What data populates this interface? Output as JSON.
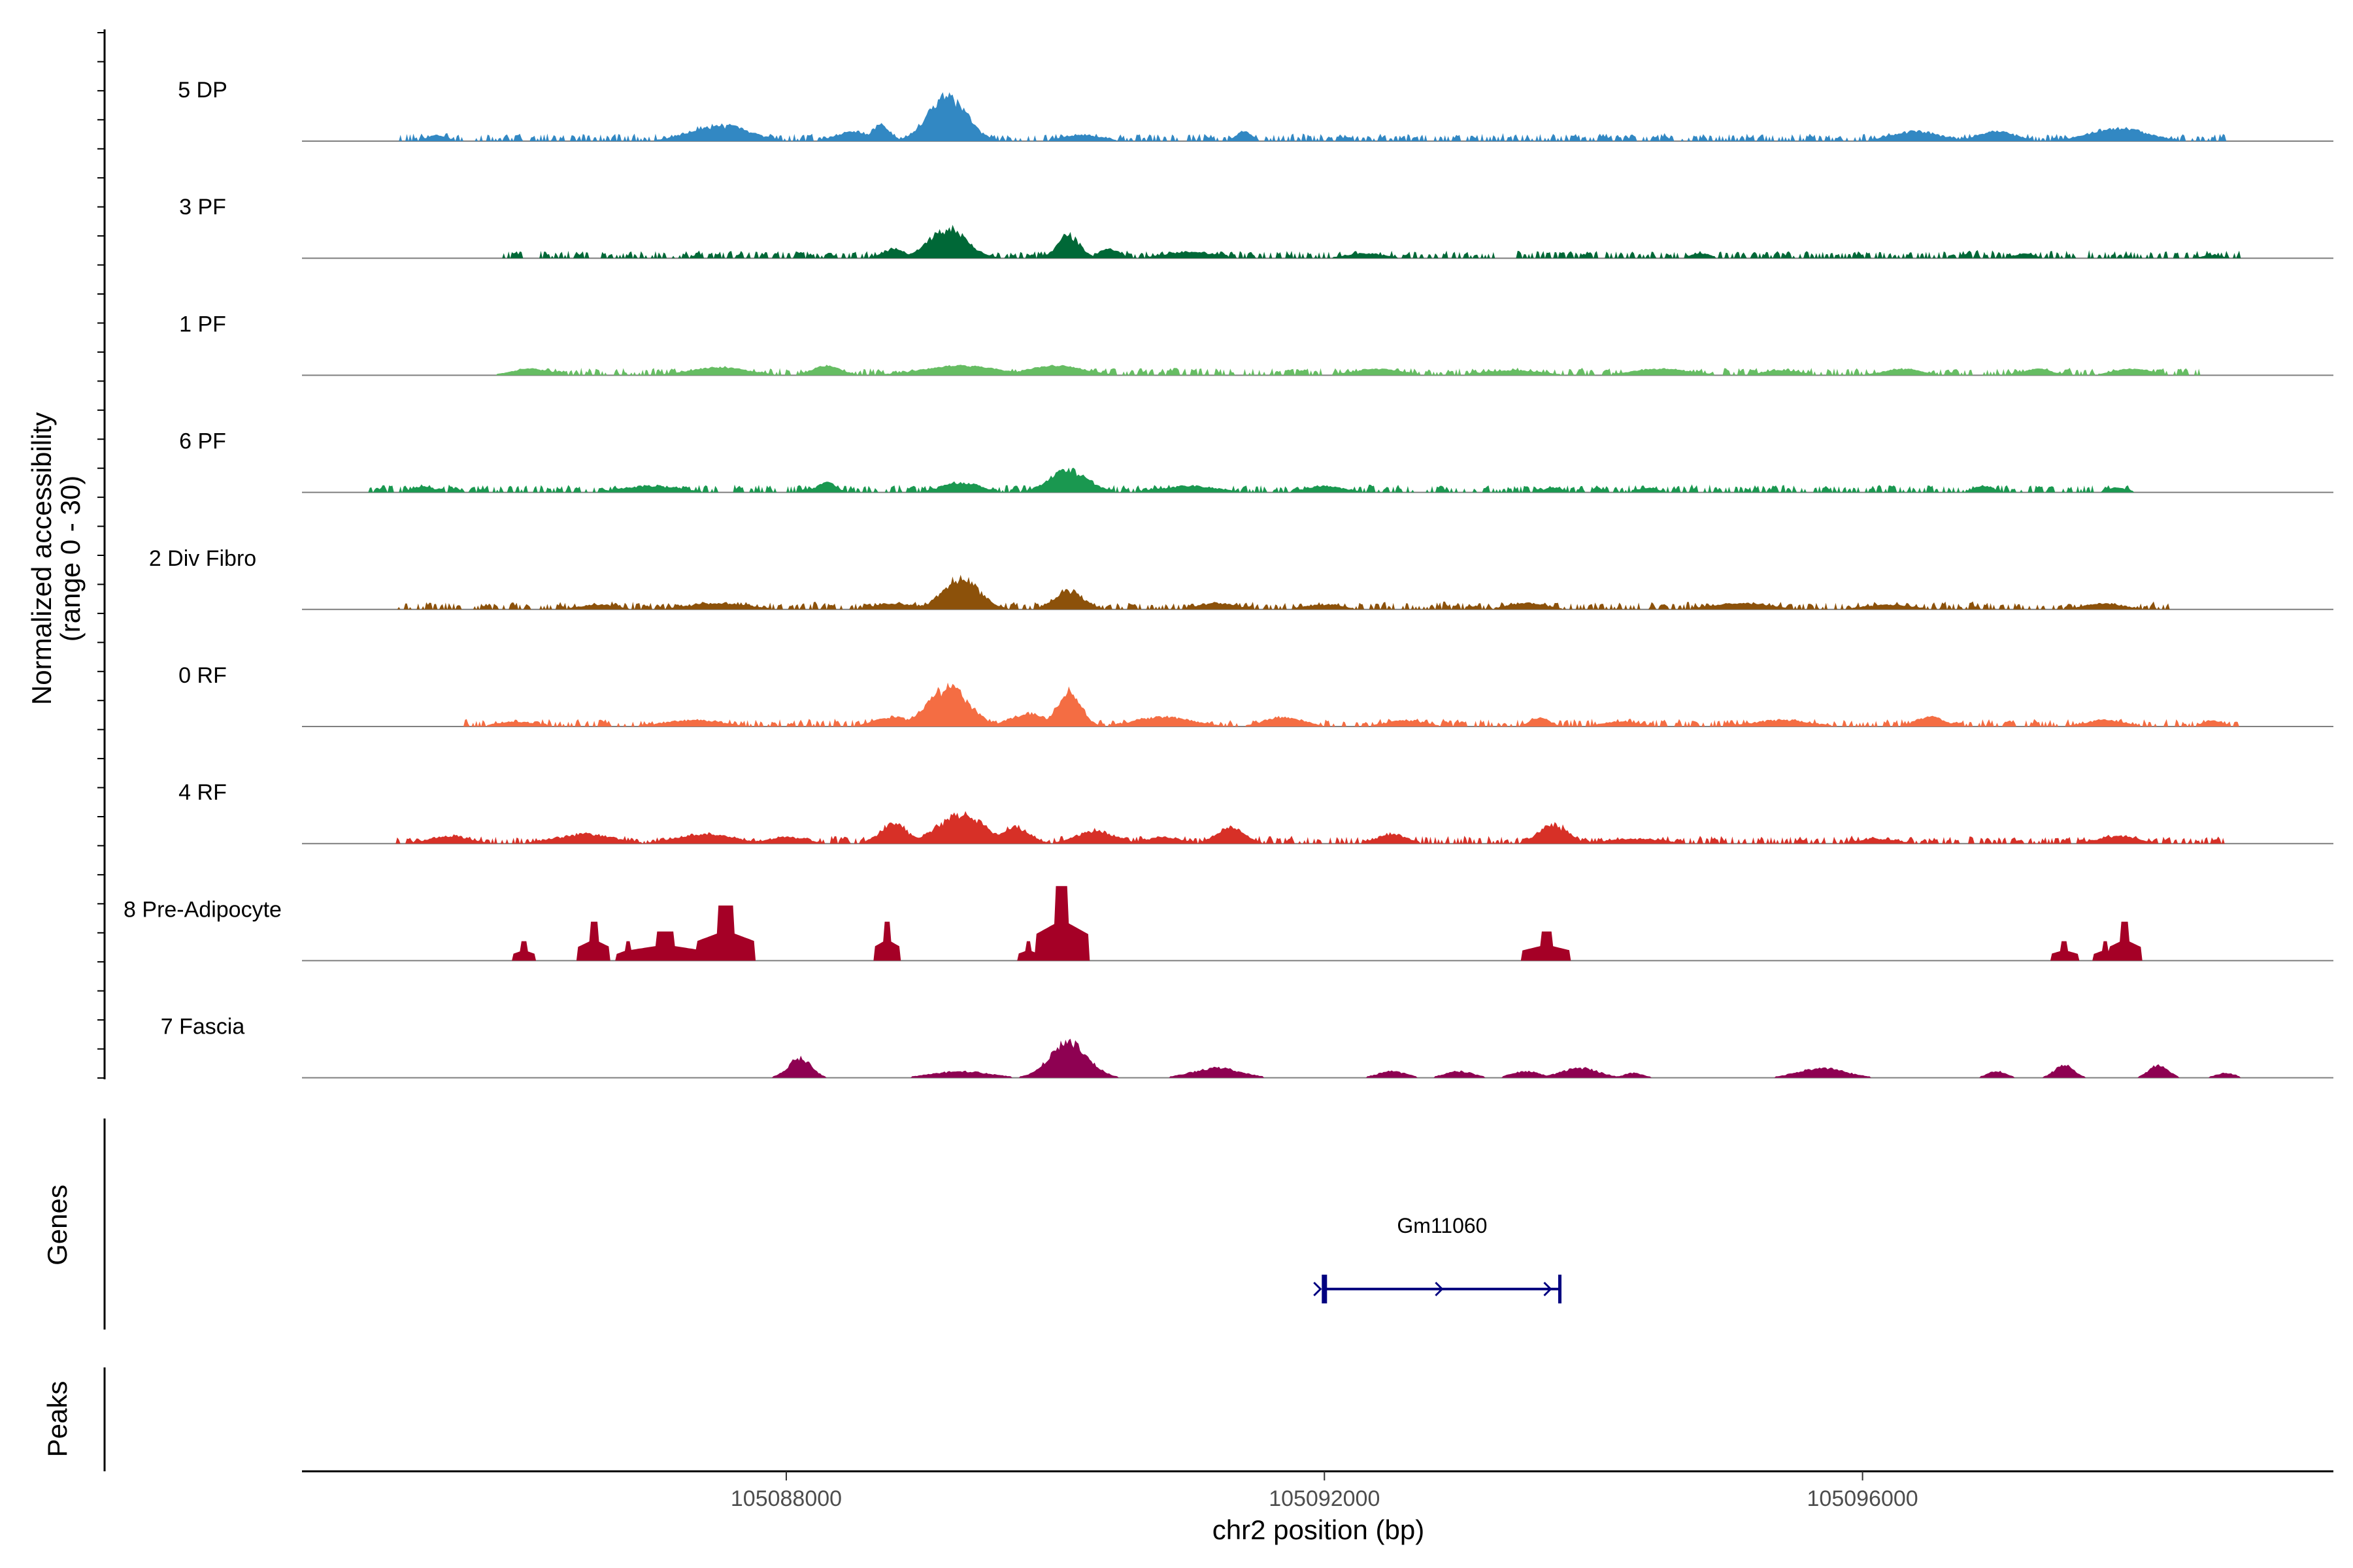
{
  "chart_data": {
    "type": "area",
    "title": "",
    "ylabel": "Normalized accessibility",
    "ylabel_range": "(range 0 - 30)",
    "xlabel": "chr2 position (bp)",
    "genes_label": "Genes",
    "peaks_label": "Peaks",
    "x_range": [
      105084400,
      105099500
    ],
    "y_range": [
      0,
      30
    ],
    "x_ticks": [
      {
        "value": 105088000,
        "label": "105088000"
      },
      {
        "value": 105092000,
        "label": "105092000"
      },
      {
        "value": 105096000,
        "label": "105096000"
      }
    ],
    "tracks": [
      {
        "name": "5 DP",
        "color": "#3288c3",
        "seg": [
          105085100,
          105098700
        ],
        "shape": "spiky",
        "peaks": [
          [
            105089200,
            14,
            200
          ],
          [
            105088500,
            3,
            180
          ],
          [
            105087500,
            5,
            300
          ],
          [
            105088700,
            5,
            100
          ],
          [
            105090200,
            2,
            200
          ],
          [
            105091400,
            3,
            80
          ],
          [
            105096400,
            3,
            250
          ],
          [
            105097900,
            4,
            300
          ],
          [
            105097000,
            3,
            200
          ],
          [
            105085400,
            2,
            100
          ]
        ]
      },
      {
        "name": "3 PF",
        "color": "#006837",
        "seg": [
          105085900,
          105098800
        ],
        "shape": "spiky",
        "peaks": [
          [
            105089200,
            9,
            200
          ],
          [
            105088800,
            3,
            120
          ],
          [
            105090100,
            7,
            120
          ],
          [
            105090400,
            3,
            100
          ],
          [
            105091000,
            2,
            250
          ],
          [
            105092300,
            1.5,
            200
          ],
          [
            105094800,
            1.5,
            100
          ],
          [
            105097200,
            1.5,
            100
          ],
          [
            105098600,
            1,
            100
          ]
        ]
      },
      {
        "name": "1 PF",
        "color": "#66bd63",
        "seg": [
          105086000,
          105098500
        ],
        "shape": "smooth",
        "peaks": [
          [
            105089300,
            3,
            400
          ],
          [
            105088300,
            3,
            150
          ],
          [
            105090000,
            3,
            300
          ],
          [
            105087500,
            2.5,
            300
          ],
          [
            105086100,
            2,
            200
          ],
          [
            105092400,
            2,
            250
          ],
          [
            105094500,
            2,
            300
          ],
          [
            105096300,
            2,
            200
          ],
          [
            105097300,
            2,
            150
          ],
          [
            105098000,
            2,
            200
          ],
          [
            105093400,
            1.5,
            300
          ],
          [
            105095400,
            1.5,
            200
          ]
        ]
      },
      {
        "name": "6 PF",
        "color": "#1a9850",
        "seg": [
          105084900,
          105098000
        ],
        "shape": "spiky",
        "peaks": [
          [
            105090100,
            7,
            200
          ],
          [
            105089300,
            3,
            200
          ],
          [
            105088300,
            3,
            100
          ],
          [
            105091000,
            2,
            300
          ],
          [
            105092000,
            2,
            200
          ],
          [
            105093700,
            1.5,
            100
          ],
          [
            105094400,
            1.5,
            100
          ],
          [
            105096900,
            2,
            100
          ],
          [
            105097900,
            1.5,
            100
          ],
          [
            105085300,
            2,
            100
          ],
          [
            105087000,
            2,
            300
          ]
        ]
      },
      {
        "name": "2 Div Fibro",
        "color": "#8c510a",
        "seg": [
          105085100,
          105098300
        ],
        "shape": "spiky",
        "peaks": [
          [
            105089300,
            9,
            200
          ],
          [
            105090100,
            6,
            150
          ],
          [
            105088800,
            2,
            200
          ],
          [
            105087500,
            2,
            300
          ],
          [
            105091200,
            2,
            200
          ],
          [
            105092000,
            1.5,
            200
          ],
          [
            105093500,
            2,
            200
          ],
          [
            105095100,
            2,
            300
          ],
          [
            105096200,
            1.5,
            250
          ],
          [
            105097800,
            2,
            200
          ],
          [
            105086600,
            1.5,
            200
          ]
        ]
      },
      {
        "name": "0 RF",
        "color": "#f46d43",
        "seg": [
          105085600,
          105098800
        ],
        "shape": "spiky",
        "peaks": [
          [
            105089200,
            12,
            220
          ],
          [
            105090100,
            10,
            130
          ],
          [
            105089800,
            4,
            200
          ],
          [
            105088800,
            3,
            200
          ],
          [
            105090800,
            3,
            300
          ],
          [
            105091700,
            3,
            200
          ],
          [
            105093600,
            3,
            100
          ],
          [
            105096500,
            3,
            150
          ],
          [
            105092600,
            2,
            200
          ],
          [
            105095400,
            2,
            300
          ],
          [
            105094200,
            1.5,
            200
          ],
          [
            105097800,
            2,
            200
          ],
          [
            105098600,
            2,
            100
          ],
          [
            105087300,
            2,
            300
          ],
          [
            105086000,
            1.5,
            200
          ]
        ]
      },
      {
        "name": "4 RF",
        "color": "#d73027",
        "seg": [
          105085100,
          105098700
        ],
        "shape": "spiky",
        "peaks": [
          [
            105089300,
            9,
            250
          ],
          [
            105088800,
            6,
            150
          ],
          [
            105089700,
            5,
            150
          ],
          [
            105090300,
            4,
            200
          ],
          [
            105091300,
            5,
            150
          ],
          [
            105093700,
            6,
            150
          ],
          [
            105092500,
            3,
            150
          ],
          [
            105085500,
            2.5,
            200
          ],
          [
            105086500,
            3,
            300
          ],
          [
            105087400,
            3,
            300
          ],
          [
            105088000,
            2,
            200
          ],
          [
            105090800,
            2,
            200
          ],
          [
            105097900,
            2.5,
            200
          ],
          [
            105096100,
            1.5,
            200
          ],
          [
            105094300,
            1.5,
            300
          ]
        ]
      },
      {
        "name": "8 Pre-Adipocyte",
        "color": "#a50026",
        "seg": null,
        "shape": "blocky",
        "peaks": [
          [
            105090050,
            23,
            200
          ],
          [
            105087550,
            17,
            220
          ],
          [
            105087100,
            9,
            280
          ],
          [
            105086570,
            12,
            120
          ],
          [
            105088750,
            12,
            100
          ],
          [
            105093650,
            9,
            180
          ],
          [
            105097950,
            12,
            120
          ],
          [
            105086050,
            6,
            80
          ],
          [
            105086820,
            6,
            80
          ],
          [
            105089800,
            6,
            80
          ],
          [
            105097500,
            6,
            100
          ],
          [
            105097800,
            6,
            80
          ]
        ]
      },
      {
        "name": "7 Fascia",
        "color": "#8e0152",
        "seg": null,
        "shape": "spiky",
        "peaks": [
          [
            105090100,
            11,
            200
          ],
          [
            105088100,
            6,
            120
          ],
          [
            105091200,
            3,
            250
          ],
          [
            105089300,
            2,
            300
          ],
          [
            105092500,
            2,
            150
          ],
          [
            105093000,
            2,
            150
          ],
          [
            105093500,
            2,
            150
          ],
          [
            105093900,
            3,
            200
          ],
          [
            105095700,
            3,
            250
          ],
          [
            105097000,
            2,
            100
          ],
          [
            105097500,
            4,
            100
          ],
          [
            105098200,
            4,
            100
          ],
          [
            105098700,
            1.5,
            100
          ],
          [
            105094300,
            1.5,
            100
          ]
        ]
      }
    ],
    "gene": {
      "name": "Gm11060",
      "start": 105092000,
      "end": 105093750,
      "strand": "+",
      "color": "#000080"
    }
  }
}
